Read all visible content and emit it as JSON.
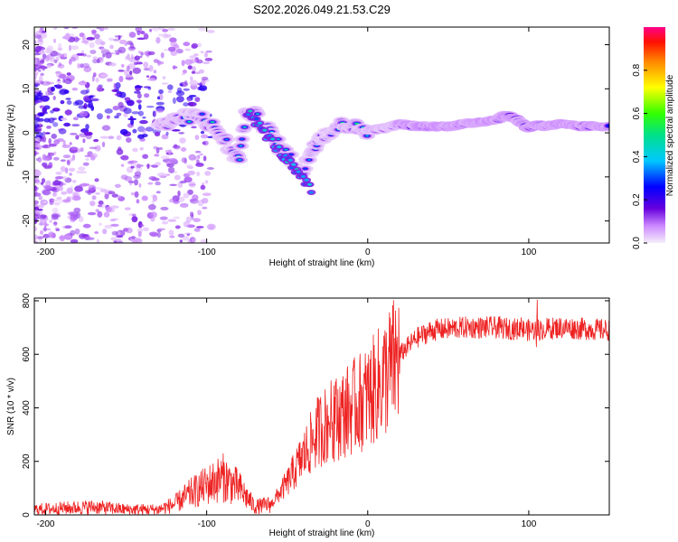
{
  "title": "S202.2026.049.21.53.C29",
  "chart_data": [
    {
      "type": "heatmap",
      "name": "spectrogram",
      "xlabel": "Height of straight line (km)",
      "ylabel": "Frequency (Hz)",
      "xlim": [
        -207,
        150
      ],
      "ylim": [
        -25,
        24
      ],
      "xticks": [
        -200,
        -100,
        0,
        100
      ],
      "yticks": [
        -20,
        -10,
        0,
        10,
        20
      ],
      "ridge": {
        "x": [
          -125,
          -115,
          -105,
          -95,
          -90,
          -85,
          -80,
          -75,
          -70,
          -65,
          -60,
          -55,
          -50,
          -45,
          -40,
          -35,
          -30,
          -25,
          -20,
          -15,
          -10,
          -5,
          0,
          10,
          20,
          30,
          40,
          50,
          60,
          70,
          80,
          85,
          90,
          95,
          100,
          105,
          110,
          120,
          130,
          140,
          150
        ],
        "y": [
          2,
          3.5,
          4,
          1,
          -1,
          -4,
          -6,
          5,
          4,
          2,
          0,
          -3,
          -5,
          -7,
          -9,
          -4,
          -1,
          0,
          1,
          2,
          1.5,
          1,
          0.5,
          1,
          2,
          1.5,
          1.5,
          1.5,
          2,
          2.5,
          3,
          4,
          3.5,
          2.5,
          1,
          2,
          1.5,
          2,
          1.5,
          1.5,
          1.5
        ]
      },
      "colorbar": {
        "label": "Normalized spectral amplitude",
        "ticks": [
          0.0,
          0.2,
          0.4,
          0.6,
          0.8
        ],
        "tick_labels": [
          "0.0",
          "0.2",
          "0.4",
          "0.6",
          "0.8"
        ],
        "range": [
          0,
          1
        ]
      }
    },
    {
      "type": "line",
      "name": "snr",
      "xlabel": "Height of straight line (km)",
      "ylabel": "SNR (10 * v/v)",
      "xlim": [
        -207,
        150
      ],
      "ylim": [
        0,
        810
      ],
      "xticks": [
        -200,
        -100,
        0,
        100
      ],
      "yticks": [
        0,
        200,
        400,
        600,
        800
      ],
      "color": "#ee2222",
      "trend": {
        "x": [
          -207,
          -190,
          -170,
          -150,
          -130,
          -120,
          -110,
          -100,
          -90,
          -80,
          -70,
          -60,
          -50,
          -40,
          -30,
          -20,
          -10,
          0,
          10,
          20,
          30,
          40,
          60,
          80,
          100,
          120,
          150
        ],
        "y": [
          20,
          25,
          30,
          20,
          20,
          40,
          80,
          110,
          140,
          100,
          30,
          40,
          120,
          220,
          320,
          360,
          400,
          440,
          510,
          600,
          660,
          690,
          700,
          700,
          690,
          700,
          690
        ]
      }
    }
  ]
}
